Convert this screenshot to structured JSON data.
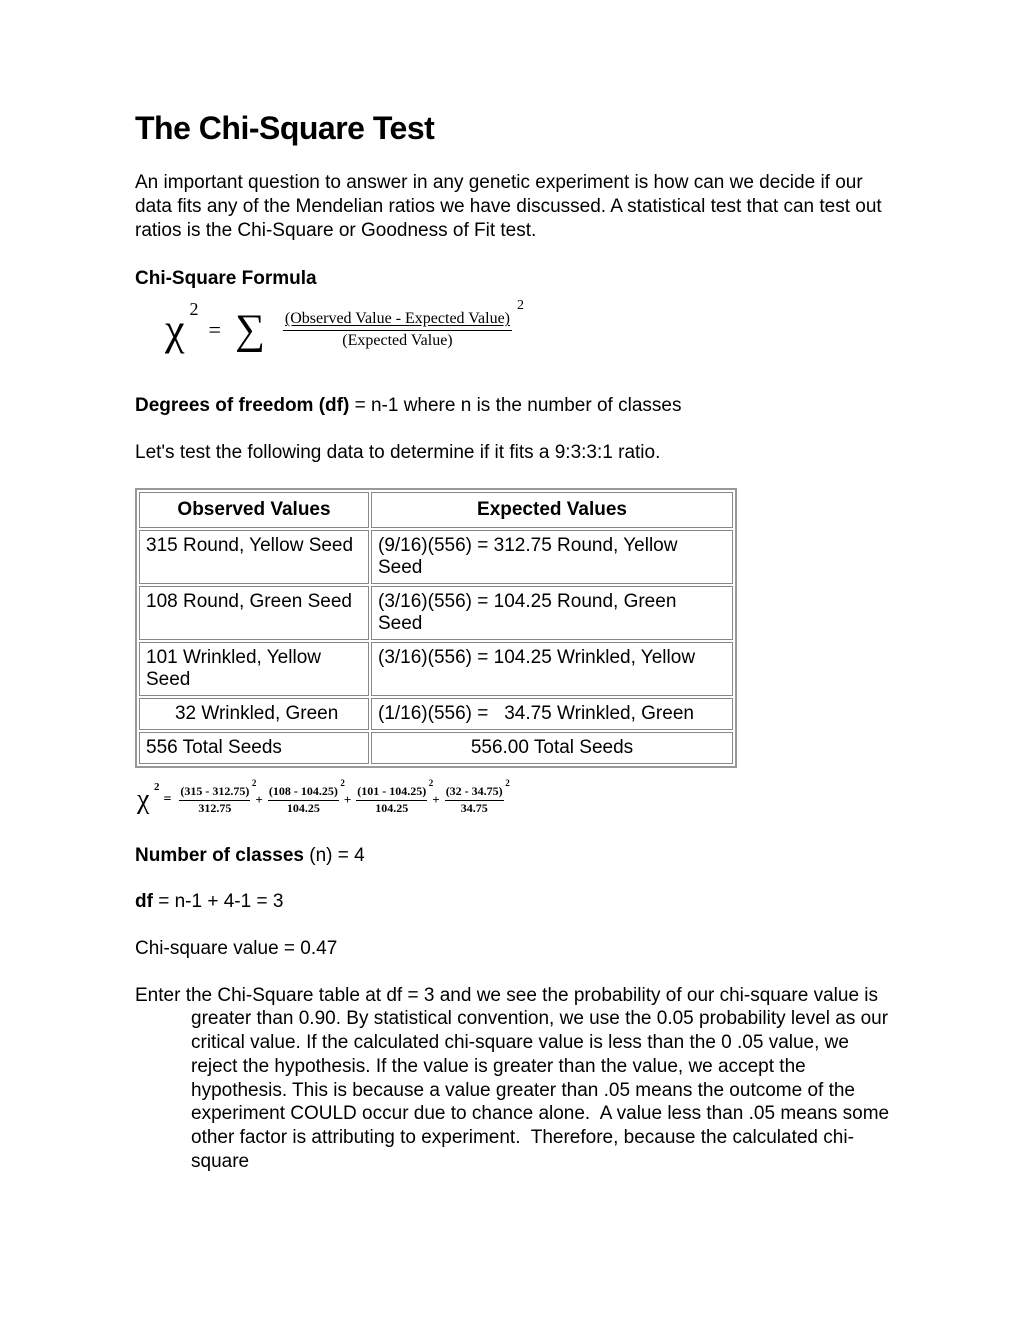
{
  "title": "The Chi-Square Test",
  "intro": "An important question to answer in any genetic experiment is how can we decide if our data fits any of the Mendelian ratios we have discussed. A statistical test that can test out ratios is the Chi-Square or Goodness of Fit test.",
  "formula_heading": "Chi-Square Formula",
  "formula": {
    "chi": "χ",
    "sup": "2",
    "equals": "=",
    "sigma": "∑",
    "numerator": "(Observed Value - Expected Value)",
    "denominator": "(Expected Value)",
    "outer_sup": "2"
  },
  "df_label": "Degrees of freedom (df)",
  "df_text": " = n-1 where n is the number of classes",
  "lets_test": "Let's test the following data to determine if it fits a 9:3:3:1 ratio.",
  "table": {
    "head_obs": "Observed Values",
    "head_exp": "Expected Values",
    "rows": [
      {
        "obs": "315 Round, Yellow Seed",
        "exp": "(9/16)(556) = 312.75 Round, Yellow Seed"
      },
      {
        "obs": "108 Round, Green Seed",
        "exp": "(3/16)(556) = 104.25 Round, Green Seed"
      },
      {
        "obs": "101 Wrinkled, Yellow Seed",
        "exp": "(3/16)(556) = 104.25 Wrinkled, Yellow"
      },
      {
        "obs": " 32 Wrinkled, Green",
        "exp": "(1/16)(556) =   34.75 Wrinkled, Green"
      }
    ],
    "total_obs": "556 Total Seeds",
    "total_exp": "556.00 Total Seeds"
  },
  "calc": {
    "chi": "χ",
    "sup": "2",
    "equals": "=",
    "terms": [
      {
        "n": "(315 - 312.75)",
        "d": "312.75",
        "s": "2"
      },
      {
        "n": "(108 - 104.25)",
        "d": "104.25",
        "s": "2"
      },
      {
        "n": "(101 - 104.25)",
        "d": "104.25",
        "s": "2"
      },
      {
        "n": "(32 - 34.75)",
        "d": "34.75",
        "s": "2"
      }
    ],
    "plus": "+"
  },
  "nclasses_label": "Number of classes",
  "nclasses_text": " (n) = 4",
  "dfcalc_label": "df",
  "dfcalc_text": " = n-1 + 4-1 = 3",
  "chivalue": "Chi-square value = 0.47",
  "explain": "Enter the Chi-Square table at df = 3 and we see the probability of our chi-square value is greater than 0.90. By statistical convention, we use the 0.05 probability level as our critical value. If the calculated chi-square value is less than the 0 .05 value, we reject the hypothesis. If the value is greater than the value, we accept the hypothesis. This is because a value greater than .05 means the outcome of the experiment COULD occur due to chance alone.  A value less than .05 means some other factor is attributing to experiment.  Therefore, because the calculated chi-square"
}
